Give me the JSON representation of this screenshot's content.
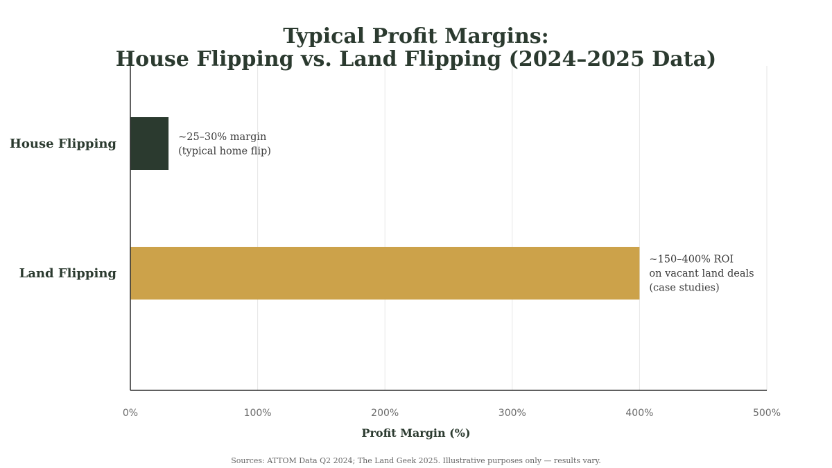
{
  "chart_data": {
    "type": "bar",
    "orientation": "horizontal",
    "title_lines": [
      "Typical Profit Margins:",
      "House Flipping vs. Land Flipping (2024–2025 Data)"
    ],
    "categories": [
      "House Flipping",
      "Land Flipping"
    ],
    "values": [
      30,
      400
    ],
    "colors": [
      "#2b3a2f",
      "#cca24a"
    ],
    "annotations": [
      [
        "~25–30% margin",
        "(typical home flip)"
      ],
      [
        "~150–400% ROI",
        "on vacant land deals",
        "(case studies)"
      ]
    ],
    "xlabel": "Profit Margin (%)",
    "ylabel": "",
    "xlim": [
      0,
      500
    ],
    "x_ticks": [
      0,
      100,
      200,
      300,
      400,
      500
    ],
    "x_tick_labels": [
      "0%",
      "100%",
      "200%",
      "300%",
      "400%",
      "500%"
    ],
    "grid": "vertical",
    "legend": "none",
    "footnote": "Sources: ATTOM Data Q2 2024; The Land Geek 2025. Illustrative purposes only — results vary."
  }
}
